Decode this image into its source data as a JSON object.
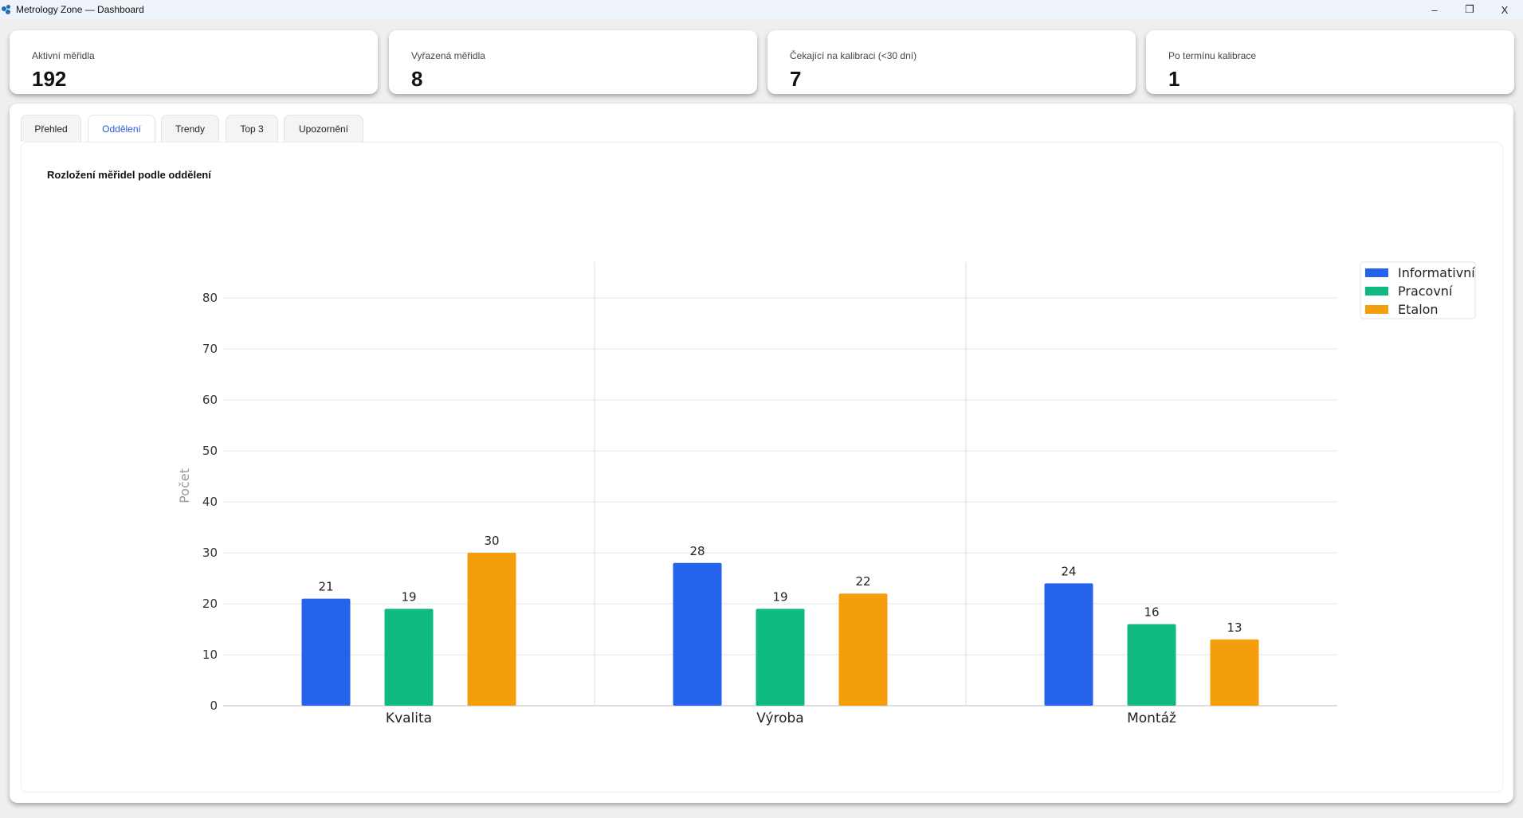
{
  "window": {
    "title": "Metrology Zone — Dashboard",
    "minimize": "–",
    "restore": "❐",
    "close": "X"
  },
  "cards": [
    {
      "label": "Aktivní měřidla",
      "value": "192"
    },
    {
      "label": "Vyřazená měřidla",
      "value": "8"
    },
    {
      "label": "Čekající na kalibraci (<30 dní)",
      "value": "7"
    },
    {
      "label": "Po termínu kalibrace",
      "value": "1"
    }
  ],
  "tabs": [
    {
      "label": "Přehled"
    },
    {
      "label": "Oddělení",
      "active": true
    },
    {
      "label": "Trendy"
    },
    {
      "label": "Top 3"
    },
    {
      "label": "Upozornění"
    }
  ],
  "chart_title": "Rozložení měřidel podle oddělení",
  "chart_data": {
    "type": "bar",
    "title": "Rozložení měřidel podle oddělení",
    "xlabel": "",
    "ylabel": "Počet",
    "categories": [
      "Kvalita",
      "Výroba",
      "Montáž"
    ],
    "series": [
      {
        "name": "Informativní",
        "values": [
          21,
          28,
          24
        ],
        "color": "#2563eb"
      },
      {
        "name": "Pracovní",
        "values": [
          19,
          19,
          16
        ],
        "color": "#10b981"
      },
      {
        "name": "Etalon",
        "values": [
          30,
          22,
          13
        ],
        "color": "#f59e0b"
      }
    ],
    "ylim": [
      0,
      87
    ],
    "yticks": [
      0,
      10,
      20,
      30,
      40,
      50,
      60,
      70,
      80
    ],
    "grid": true,
    "legend": "top-right",
    "data_labels": true
  }
}
